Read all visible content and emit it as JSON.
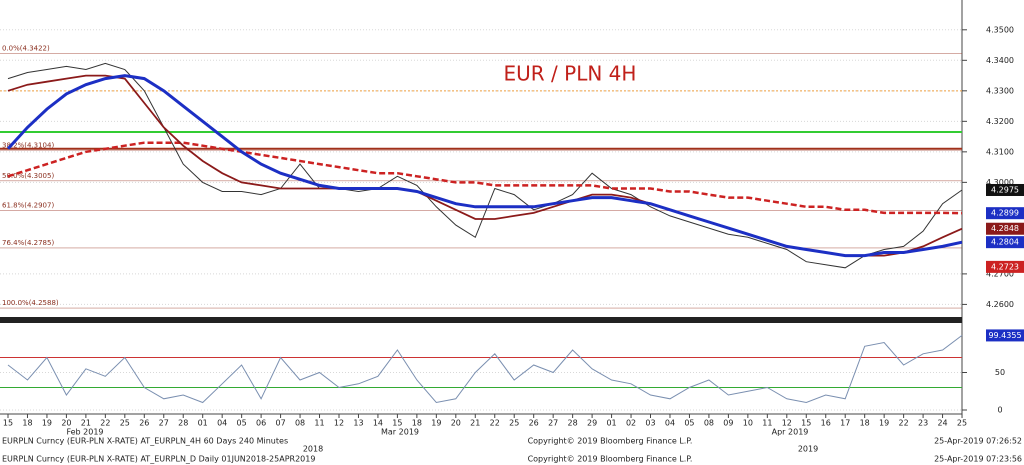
{
  "chart_data": [
    {
      "type": "line",
      "title": "EUR / PLN 4H",
      "categories": [
        "15",
        "18",
        "19",
        "20",
        "21",
        "22",
        "25",
        "26",
        "27",
        "28",
        "01",
        "04",
        "05",
        "06",
        "07",
        "08",
        "11",
        "12",
        "13",
        "14",
        "15",
        "18",
        "19",
        "20",
        "21",
        "22",
        "25",
        "26",
        "27",
        "28",
        "29",
        "01",
        "02",
        "03",
        "04",
        "05",
        "08",
        "09",
        "10",
        "11",
        "12",
        "15",
        "16",
        "17",
        "18",
        "19",
        "22",
        "23",
        "24",
        "25"
      ],
      "months": [
        "Feb 2019",
        "Mar 2019",
        "Apr 2019"
      ],
      "years": [
        "2018",
        "2019"
      ],
      "series": [
        {
          "color": "#333333",
          "values": [
            4.334,
            4.336,
            4.337,
            4.338,
            4.337,
            4.339,
            4.337,
            4.33,
            4.318,
            4.306,
            4.3,
            4.297,
            4.297,
            4.296,
            4.298,
            4.306,
            4.298,
            4.298,
            4.297,
            4.298,
            4.302,
            4.299,
            4.292,
            4.286,
            4.282,
            4.298,
            4.296,
            4.291,
            4.293,
            4.296,
            4.303,
            4.298,
            4.296,
            4.292,
            4.289,
            4.287,
            4.285,
            4.283,
            4.282,
            4.28,
            4.278,
            4.274,
            4.273,
            4.272,
            4.276,
            4.278,
            4.279,
            4.284,
            4.293,
            4.2975
          ]
        },
        {
          "color": "#cc2222",
          "dash": true,
          "values": [
            4.302,
            4.304,
            4.306,
            4.308,
            4.31,
            4.311,
            4.312,
            4.313,
            4.313,
            4.313,
            4.312,
            4.311,
            4.31,
            4.309,
            4.308,
            4.307,
            4.306,
            4.305,
            4.304,
            4.303,
            4.303,
            4.302,
            4.301,
            4.3,
            4.3,
            4.299,
            4.299,
            4.299,
            4.299,
            4.299,
            4.299,
            4.298,
            4.298,
            4.298,
            4.297,
            4.297,
            4.296,
            4.295,
            4.295,
            4.294,
            4.293,
            4.292,
            4.292,
            4.291,
            4.291,
            4.29,
            4.29,
            4.29,
            4.29,
            4.2899
          ]
        },
        {
          "color": "#8b1a1a",
          "values": [
            4.33,
            4.332,
            4.333,
            4.334,
            4.335,
            4.335,
            4.334,
            4.326,
            4.318,
            4.312,
            4.307,
            4.303,
            4.3,
            4.299,
            4.298,
            4.298,
            4.298,
            4.298,
            4.298,
            4.298,
            4.298,
            4.297,
            4.294,
            4.291,
            4.288,
            4.288,
            4.289,
            4.29,
            4.292,
            4.294,
            4.296,
            4.296,
            4.295,
            4.293,
            4.291,
            4.289,
            4.287,
            4.285,
            4.283,
            4.281,
            4.279,
            4.278,
            4.277,
            4.276,
            4.276,
            4.276,
            4.277,
            4.279,
            4.282,
            4.2848
          ]
        },
        {
          "color": "#1c2fc4",
          "values": [
            4.311,
            4.318,
            4.324,
            4.329,
            4.332,
            4.334,
            4.335,
            4.334,
            4.33,
            4.325,
            4.32,
            4.315,
            4.31,
            4.306,
            4.303,
            4.301,
            4.299,
            4.298,
            4.298,
            4.298,
            4.298,
            4.297,
            4.295,
            4.293,
            4.292,
            4.292,
            4.292,
            4.292,
            4.293,
            4.294,
            4.295,
            4.295,
            4.294,
            4.293,
            4.291,
            4.289,
            4.287,
            4.285,
            4.283,
            4.281,
            4.279,
            4.278,
            4.277,
            4.276,
            4.276,
            4.277,
            4.277,
            4.278,
            4.279,
            4.2804
          ]
        }
      ],
      "ylim": [
        4.2562,
        4.3578
      ],
      "yticks": [
        {
          "value": 4.26,
          "label": "4.2600"
        },
        {
          "value": 4.27,
          "label": "4.2700"
        },
        {
          "value": 4.3,
          "label": "4.3000"
        },
        {
          "value": 4.31,
          "label": "4.3100"
        },
        {
          "value": 4.32,
          "label": "4.3200"
        },
        {
          "value": 4.33,
          "label": "4.3300"
        },
        {
          "value": 4.34,
          "label": "4.3400"
        },
        {
          "value": 4.35,
          "label": "4.3500"
        }
      ],
      "fib": [
        {
          "value": 4.3422,
          "label": "0.0%(4.3422)"
        },
        {
          "value": 4.3104,
          "label": "38.2%(4.3104)"
        },
        {
          "value": 4.3005,
          "label": "50.0%(4.3005)"
        },
        {
          "value": 4.2907,
          "label": "61.8%(4.2907)"
        },
        {
          "value": 4.2785,
          "label": "76.4%(4.2785)"
        },
        {
          "value": 4.2588,
          "label": "100.0%(4.2588)"
        }
      ],
      "levels": [
        {
          "value": 4.33,
          "color": "#f0a040"
        },
        {
          "value": 4.3165,
          "color": "#33cc33"
        },
        {
          "value": 4.311,
          "color": "#a0301a"
        }
      ],
      "badges": [
        {
          "value": 4.2975,
          "label": "4.2975",
          "color": "#111111"
        },
        {
          "value": 4.2899,
          "label": "4.2899",
          "color": "#1c2fc4"
        },
        {
          "value": 4.2848,
          "label": "4.2848",
          "color": "#8b1a1a"
        },
        {
          "value": 4.2804,
          "label": "4.2804",
          "color": "#1c2fc4"
        },
        {
          "value": 4.2723,
          "label": "4.2723",
          "color": "#cc2222"
        }
      ]
    },
    {
      "type": "line",
      "series": [
        {
          "color": "#7a8fb0",
          "values": [
            60,
            40,
            70,
            20,
            55,
            45,
            70,
            30,
            15,
            20,
            10,
            35,
            60,
            15,
            70,
            40,
            50,
            30,
            35,
            45,
            80,
            40,
            10,
            15,
            50,
            75,
            40,
            60,
            50,
            80,
            55,
            40,
            35,
            20,
            15,
            30,
            40,
            20,
            25,
            30,
            15,
            10,
            20,
            15,
            85,
            90,
            60,
            75,
            80,
            99.4355
          ]
        }
      ],
      "ylim": [
        0,
        100
      ],
      "yticks": [
        0,
        50
      ],
      "levels": [
        {
          "value": 70,
          "color": "#cc3333"
        },
        {
          "value": 30,
          "color": "#33aa33"
        }
      ],
      "badges": [
        {
          "value": 99.4355,
          "label": "99.4355",
          "color": "#1c2fc4"
        }
      ]
    }
  ],
  "footer": [
    [
      "EURPLN Curncy (EUR-PLN X-RATE) AT_EURPLN_4H 60 Days 240 Minutes",
      "Copyright© 2019 Bloomberg Finance L.P.",
      "25-Apr-2019 07:26:52"
    ],
    [
      "EURPLN Curncy (EUR-PLN X-RATE) AT_EURPLN_D  Daily 01JUN2018-25APR2019",
      "Copyright© 2019 Bloomberg Finance L.P.",
      "25-Apr-2019 07:23:56"
    ]
  ]
}
